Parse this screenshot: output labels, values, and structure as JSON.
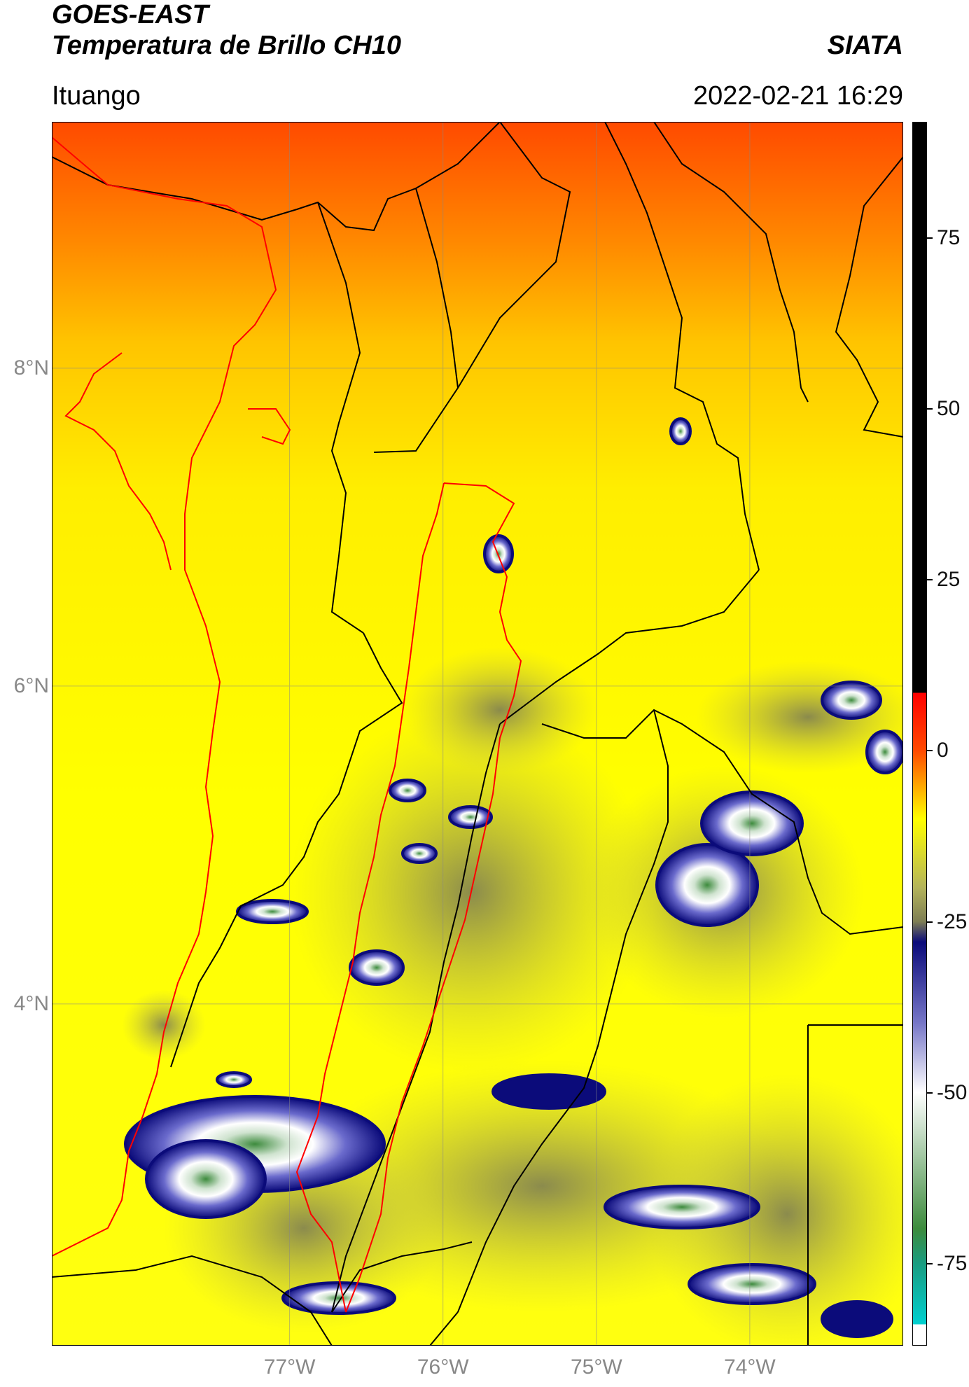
{
  "header": {
    "satellite": "GOES-EAST",
    "product": "Temperatura de Brillo CH10",
    "org": "SIATA",
    "region": "Ituango",
    "datetime": "2022-02-21 16:29"
  },
  "map": {
    "lat_labels": [
      "8°N",
      "6°N",
      "4°N"
    ],
    "lon_labels": [
      "77°W",
      "76°W",
      "75°W",
      "74°W"
    ],
    "lat_values": [
      8,
      6,
      4
    ],
    "lon_values": [
      -77,
      -76,
      -75,
      -74
    ],
    "lat_range": [
      1.85,
      9.55
    ],
    "lon_range": [
      -78.55,
      -73.0
    ],
    "colors": {
      "warm": "#ff4a00",
      "mid": "#ffff00",
      "cold_gray": "#7e7e54",
      "cold_blue": "#0b0b7a",
      "coldest": "#3d8b3d",
      "border_national": "#000000",
      "border_highlight": "#ff0000"
    }
  },
  "colorbar": {
    "labels": [
      "75",
      "50",
      "25",
      "0",
      "-25",
      "-50",
      "-75"
    ],
    "values": [
      75,
      50,
      25,
      0,
      -25,
      -50,
      -75
    ],
    "range": [
      -87,
      92
    ]
  }
}
